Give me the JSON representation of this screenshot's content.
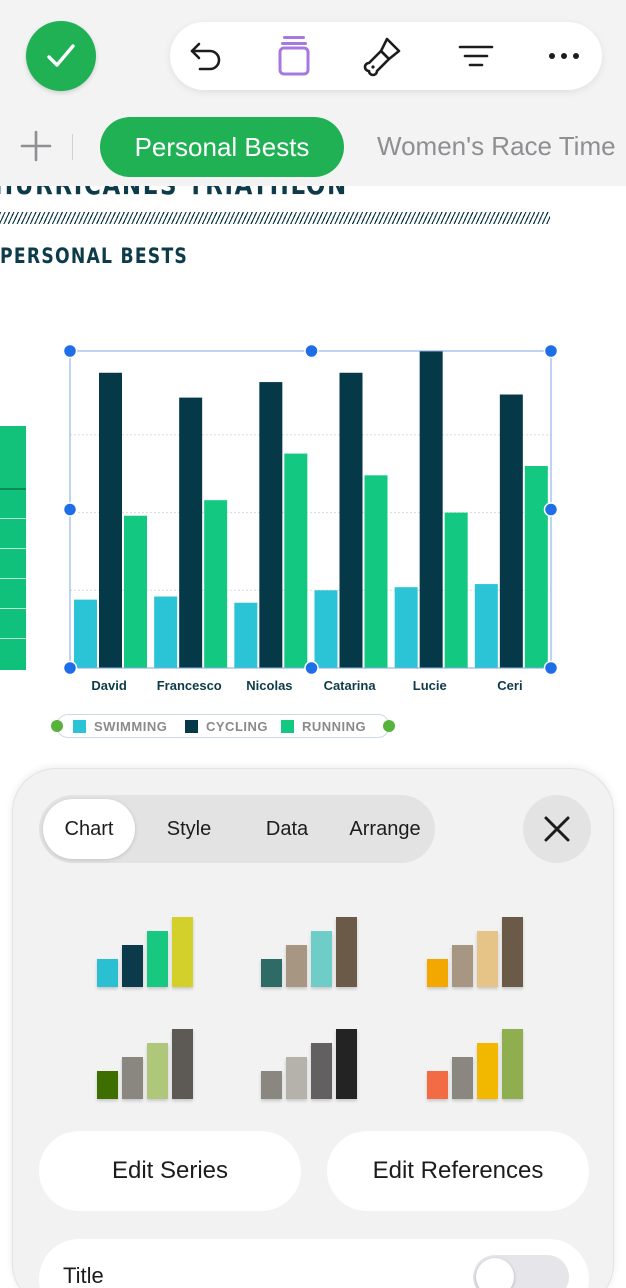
{
  "toolbar": {
    "done_icon": "checkmark-icon",
    "icons": [
      "undo-icon",
      "shapes-icon",
      "format-brush-icon",
      "organize-icon",
      "more-icon"
    ],
    "accent": "#1fb154"
  },
  "tabs": {
    "active": "Personal Bests",
    "second": "Women's Race Time"
  },
  "sheet": {
    "title": "HURRICANES TRIATHLON",
    "subtitle": "PERSONAL BESTS"
  },
  "chart_data": {
    "type": "bar",
    "categories": [
      "David",
      "Francesco",
      "Nicolas",
      "Catarina",
      "Lucie",
      "Ceri"
    ],
    "series": [
      {
        "name": "SWIMMING",
        "color": "#2ac4d6",
        "values": [
          22,
          23,
          21,
          25,
          26,
          27
        ]
      },
      {
        "name": "CYCLING",
        "color": "#063948",
        "values": [
          95,
          87,
          92,
          95,
          102,
          88
        ]
      },
      {
        "name": "RUNNING",
        "color": "#13c982",
        "values": [
          49,
          54,
          69,
          62,
          50,
          65
        ]
      }
    ],
    "ylim": [
      0,
      102
    ],
    "gridlines": [
      25,
      50,
      75
    ],
    "grid": true,
    "legend": "bottom",
    "title": "",
    "xlabel": "",
    "ylabel": ""
  },
  "panel": {
    "segments": [
      "Chart",
      "Style",
      "Data",
      "Arrange"
    ],
    "active_segment": "Chart",
    "close_icon": "close-icon",
    "chart_styles": [
      [
        "#2bbfd2",
        "#0b3a4b",
        "#19c880",
        "#d3cf2b"
      ],
      [
        "#2e6a66",
        "#a79682",
        "#6ecdc6",
        "#6b5a47"
      ],
      [
        "#f2a800",
        "#a79682",
        "#e6c488",
        "#6b5a47"
      ],
      [
        "#3e6d00",
        "#8a8680",
        "#aec77a",
        "#5d5a56"
      ],
      [
        "#8a8680",
        "#b5b1ab",
        "#626060",
        "#232323"
      ],
      [
        "#f26b45",
        "#8a8680",
        "#f2b800",
        "#8fae50"
      ]
    ],
    "edit_series": "Edit Series",
    "edit_references": "Edit References",
    "title_row_label": "Title",
    "title_toggle": false
  }
}
